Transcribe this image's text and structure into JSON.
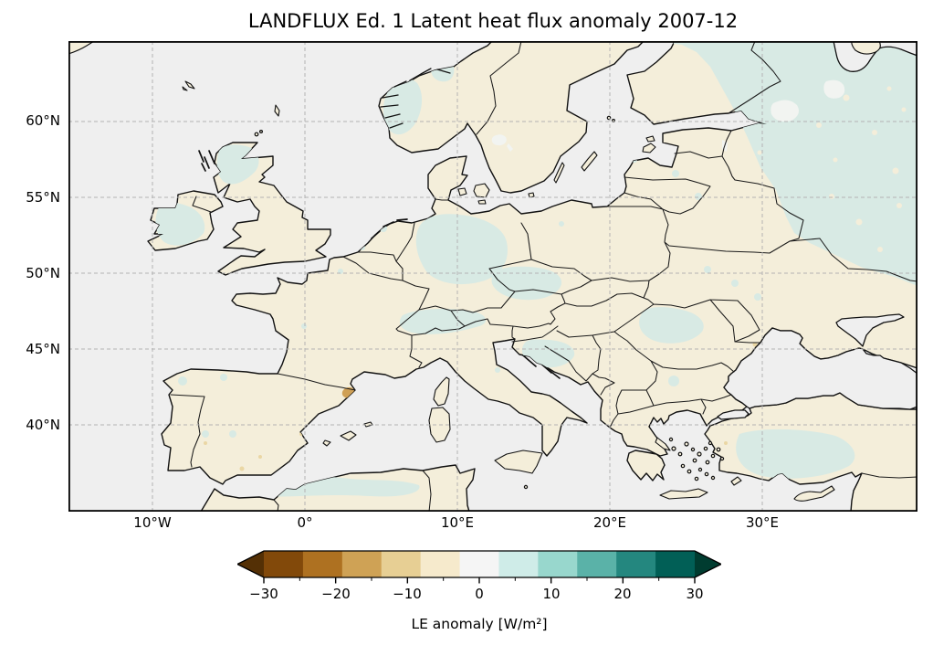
{
  "title": "LANDFLUX Ed. 1 Latent heat flux anomaly 2007-12",
  "map": {
    "x_ticks": [
      "10°W",
      "0°",
      "10°E",
      "20°E",
      "30°E"
    ],
    "y_ticks": [
      "60°N",
      "55°N",
      "50°N",
      "45°N",
      "40°N"
    ]
  },
  "colorbar": {
    "label": "LE anomaly [W/m²]",
    "tick_labels": [
      "−30",
      "−20",
      "−10",
      "0",
      "10",
      "20",
      "30"
    ]
  },
  "colors": {
    "background": "#ffffff",
    "ocean": "#efefef",
    "land": "#f4eeda",
    "tint": "#d8eae4",
    "lake": "#f2f4f1",
    "tan": "#ead7a4",
    "spot": "#cfa055",
    "coastline": "#111111",
    "border": "#1a1a1a",
    "gridline": "#b3b3b3",
    "frame": "#000000"
  },
  "chart_data": {
    "type": "heatmap",
    "subtype": "geographic anomaly map (filled contour over Europe, PlateCarree projection)",
    "title": "LANDFLUX Ed. 1 Latent heat flux anomaly 2007-12",
    "xlabel": "",
    "ylabel": "",
    "x_tick_labels": [
      "10°W",
      "0°",
      "10°E",
      "20°E",
      "30°E"
    ],
    "y_tick_labels": [
      "60°N",
      "55°N",
      "50°N",
      "45°N",
      "40°N"
    ],
    "x_gridlines_deg": [
      -10,
      0,
      10,
      20,
      30
    ],
    "y_gridlines_deg": [
      40,
      45,
      50,
      55,
      60
    ],
    "extent": {
      "lon": [
        -15.5,
        40.2
      ],
      "lat": [
        34.3,
        65.3
      ]
    },
    "grid": "dashed gray graticule",
    "colorbar": {
      "label": "LE anomaly [W/m²]",
      "orientation": "horizontal",
      "ticks": [
        -30,
        -20,
        -10,
        0,
        10,
        20,
        30
      ],
      "range": [
        -30,
        30
      ],
      "n_intervals": 11,
      "extend": "both",
      "colormap": "BrBG (brown = negative, teal = positive)",
      "segment_colors": [
        "#82490a",
        "#ae7121",
        "#cfa255",
        "#e7cf94",
        "#f6eacc",
        "#f5f5f5",
        "#cfece8",
        "#98d7cd",
        "#5ab2a8",
        "#24877f",
        "#015f56"
      ],
      "arrow_left_color": "#543005",
      "arrow_right_color": "#003c30"
    },
    "observed_patterns": [
      {
        "region": "Most of western and central Europe land",
        "anomaly_w_m2": "≈ 0 to −5 (pale cream)"
      },
      {
        "region": "Northwest Russia / Karelia / far northeast of map",
        "anomaly_w_m2": "≈ +2 to +8 (pale teal)"
      },
      {
        "region": "Scotland, Ireland, southern Norway, Alps, Czechia, central Germany",
        "anomaly_w_m2": "≈ +2 to +5 (pale teal patches)"
      },
      {
        "region": "Central Turkey and Algerian/Tunisian coastal interior",
        "anomaly_w_m2": "≈ +2 to +5 (pale teal)"
      },
      {
        "region": "Catalonia (NE Spain, near Pyrenees east end)",
        "anomaly_w_m2": "≈ −10 to −15 (small tan-brown spot)"
      },
      {
        "region": "Oceans and seas",
        "anomaly_w_m2": "masked / no data (light gray)"
      }
    ]
  }
}
